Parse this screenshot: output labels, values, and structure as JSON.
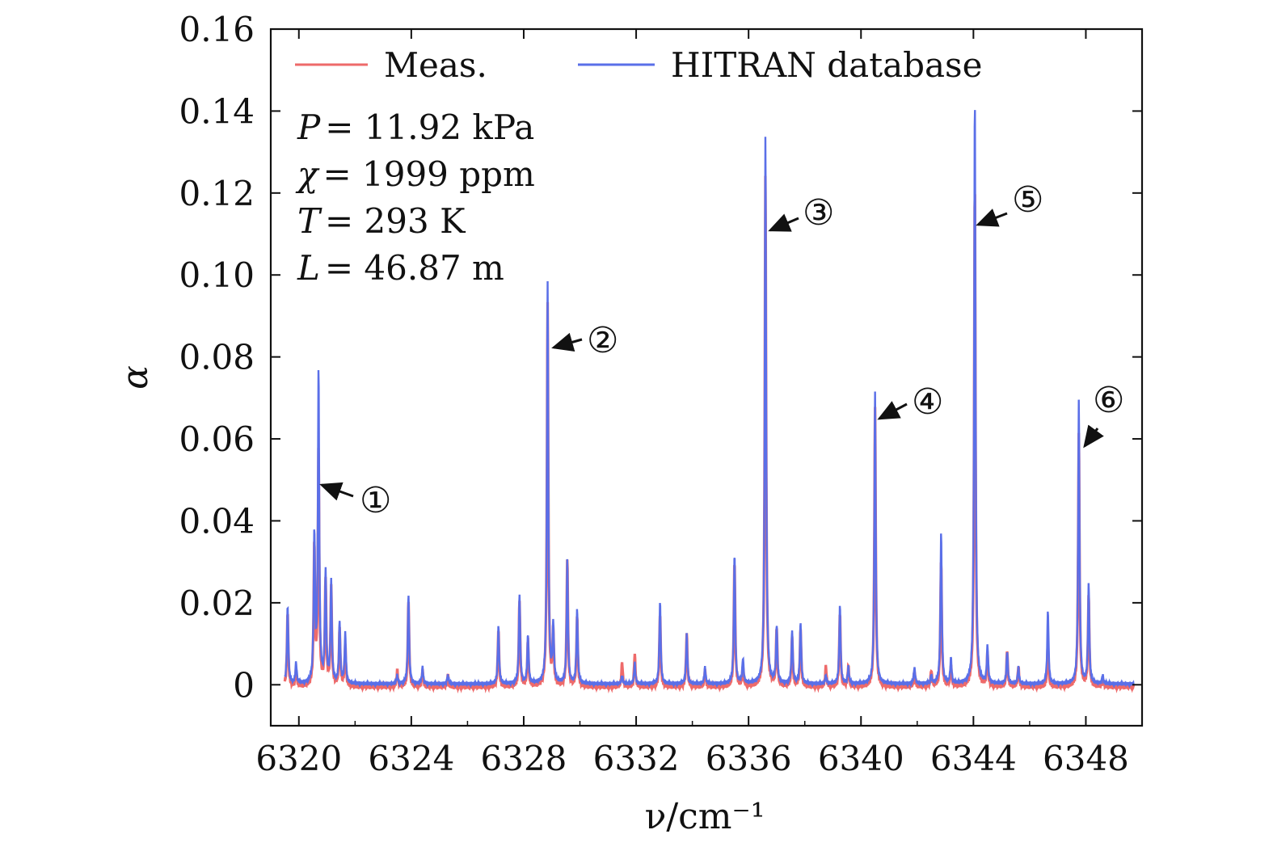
{
  "chart_data": {
    "type": "line",
    "xlabel": "ν/cm⁻¹",
    "ylabel": "α",
    "xlim": [
      6319.0,
      6350.0
    ],
    "ylim": [
      -0.01,
      0.16
    ],
    "xticks": [
      6320,
      6324,
      6328,
      6332,
      6336,
      6340,
      6344,
      6348
    ],
    "xtick_labels": [
      "6320",
      "6324",
      "6328",
      "6332",
      "6336",
      "6340",
      "6344",
      "6348"
    ],
    "yticks": [
      0,
      0.02,
      0.04,
      0.06,
      0.08,
      0.1,
      0.12,
      0.14,
      0.16
    ],
    "ytick_labels": [
      "0",
      "0.02",
      "0.04",
      "0.06",
      "0.08",
      "0.10",
      "0.12",
      "0.14",
      "0.16"
    ],
    "legend": {
      "placement": "top",
      "entries": [
        "Meas.",
        "HITRAN database"
      ]
    },
    "series": [
      {
        "name": "Meas.",
        "color": "#ee6a6a",
        "peaks": [
          [
            6319.6,
            0.018
          ],
          [
            6319.9,
            0.004
          ],
          [
            6320.55,
            0.034
          ],
          [
            6320.7,
            0.058
          ],
          [
            6320.95,
            0.026
          ],
          [
            6321.15,
            0.024
          ],
          [
            6321.45,
            0.014
          ],
          [
            6321.65,
            0.01
          ],
          [
            6323.5,
            0.004
          ],
          [
            6323.9,
            0.021
          ],
          [
            6324.4,
            0.004
          ],
          [
            6325.3,
            0.003
          ],
          [
            6327.1,
            0.014
          ],
          [
            6327.85,
            0.021
          ],
          [
            6328.15,
            0.011
          ],
          [
            6328.85,
            0.094
          ],
          [
            6329.05,
            0.013
          ],
          [
            6329.55,
            0.031
          ],
          [
            6329.9,
            0.017
          ],
          [
            6331.5,
            0.006
          ],
          [
            6331.95,
            0.008
          ],
          [
            6332.85,
            0.018
          ],
          [
            6333.8,
            0.013
          ],
          [
            6334.45,
            0.004
          ],
          [
            6335.5,
            0.031
          ],
          [
            6335.8,
            0.005
          ],
          [
            6336.6,
            0.125
          ],
          [
            6337.0,
            0.014
          ],
          [
            6337.55,
            0.012
          ],
          [
            6337.85,
            0.014
          ],
          [
            6338.75,
            0.005
          ],
          [
            6339.25,
            0.018
          ],
          [
            6339.55,
            0.005
          ],
          [
            6340.5,
            0.068
          ],
          [
            6341.9,
            0.004
          ],
          [
            6342.5,
            0.004
          ],
          [
            6342.85,
            0.031
          ],
          [
            6343.2,
            0.005
          ],
          [
            6344.05,
            0.124
          ],
          [
            6344.5,
            0.008
          ],
          [
            6345.2,
            0.009
          ],
          [
            6345.6,
            0.005
          ],
          [
            6346.65,
            0.011
          ],
          [
            6347.75,
            0.062
          ],
          [
            6348.1,
            0.022
          ],
          [
            6348.6,
            0.002
          ]
        ]
      },
      {
        "name": "HITRAN database",
        "color": "#5a6fe8",
        "peaks": [
          [
            6319.6,
            0.019
          ],
          [
            6319.9,
            0.005
          ],
          [
            6320.55,
            0.036
          ],
          [
            6320.7,
            0.076
          ],
          [
            6320.95,
            0.027
          ],
          [
            6321.15,
            0.025
          ],
          [
            6321.45,
            0.015
          ],
          [
            6321.65,
            0.012
          ],
          [
            6323.5,
            0.002
          ],
          [
            6323.9,
            0.022
          ],
          [
            6324.4,
            0.004
          ],
          [
            6325.3,
            0.002
          ],
          [
            6327.1,
            0.014
          ],
          [
            6327.85,
            0.022
          ],
          [
            6328.15,
            0.012
          ],
          [
            6328.85,
            0.098
          ],
          [
            6329.05,
            0.014
          ],
          [
            6329.55,
            0.03
          ],
          [
            6329.9,
            0.018
          ],
          [
            6331.5,
            0.002
          ],
          [
            6331.95,
            0.005
          ],
          [
            6332.85,
            0.02
          ],
          [
            6333.8,
            0.012
          ],
          [
            6334.45,
            0.004
          ],
          [
            6335.5,
            0.032
          ],
          [
            6335.8,
            0.006
          ],
          [
            6336.6,
            0.134
          ],
          [
            6337.0,
            0.014
          ],
          [
            6337.55,
            0.013
          ],
          [
            6337.85,
            0.015
          ],
          [
            6338.75,
            0.002
          ],
          [
            6339.25,
            0.019
          ],
          [
            6339.55,
            0.004
          ],
          [
            6340.5,
            0.071
          ],
          [
            6341.9,
            0.004
          ],
          [
            6342.5,
            0.002
          ],
          [
            6342.85,
            0.037
          ],
          [
            6343.2,
            0.006
          ],
          [
            6344.05,
            0.144
          ],
          [
            6344.5,
            0.009
          ],
          [
            6345.2,
            0.008
          ],
          [
            6345.6,
            0.004
          ],
          [
            6346.65,
            0.018
          ],
          [
            6347.75,
            0.069
          ],
          [
            6348.1,
            0.024
          ],
          [
            6348.6,
            0.002
          ]
        ]
      }
    ],
    "annotations": {
      "conditions": [
        {
          "symbol": "P",
          "text": "= 11.92 kPa"
        },
        {
          "symbol": "χ",
          "text": "= 1999 ppm"
        },
        {
          "symbol": "T",
          "text": "= 293 K"
        },
        {
          "symbol": "L",
          "text": "= 46.87 m"
        }
      ],
      "peak_markers": [
        {
          "label": "①",
          "x": 6320.7,
          "y": 0.049
        },
        {
          "label": "②",
          "x": 6328.85,
          "y": 0.083
        },
        {
          "label": "③",
          "x": 6336.6,
          "y": 0.111
        },
        {
          "label": "④",
          "x": 6340.5,
          "y": 0.065
        },
        {
          "label": "⑤",
          "x": 6344.05,
          "y": 0.114
        },
        {
          "label": "⑥",
          "x": 6347.75,
          "y": 0.058
        }
      ]
    }
  }
}
